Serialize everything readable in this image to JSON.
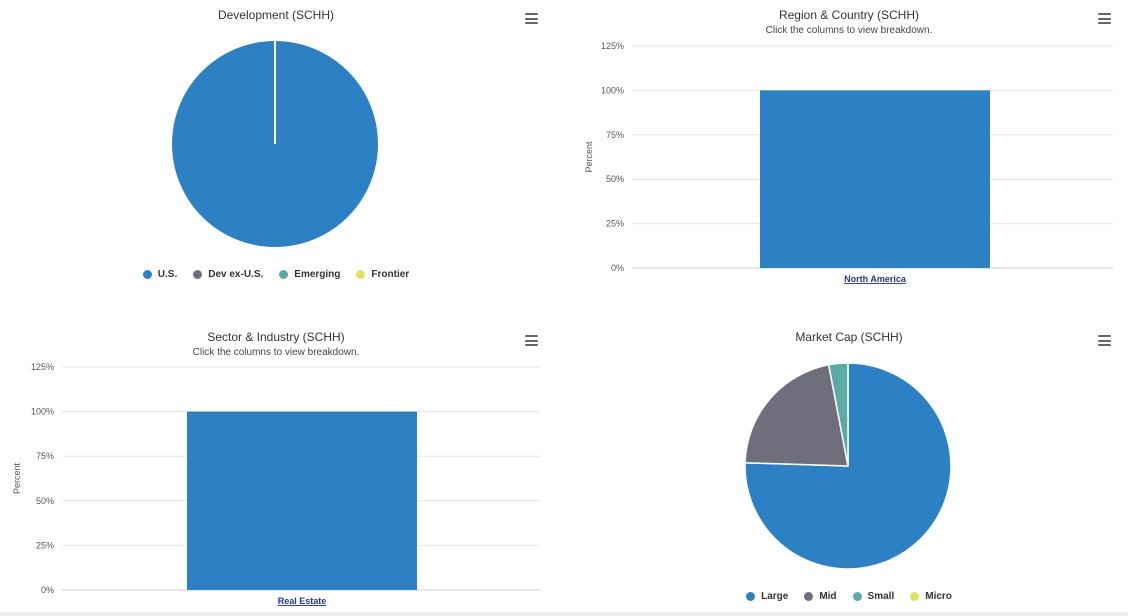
{
  "colors": {
    "blue": "#2b81c4",
    "gray": "#6e6e7c",
    "teal": "#5aaba6",
    "yellow": "#e2e35c"
  },
  "menu_icon": "hamburger-menu-icon",
  "chart_data": [
    {
      "id": "development",
      "type": "pie",
      "title": "Development (SCHH)",
      "labels": [
        "U.S.",
        "Dev ex-U.S.",
        "Emerging",
        "Frontier"
      ],
      "values": [
        100,
        0,
        0,
        0
      ],
      "colors": [
        "#2b81c4",
        "#6e6e7c",
        "#5aaba6",
        "#e2e35c"
      ],
      "legend": "bottom-center"
    },
    {
      "id": "region",
      "type": "bar",
      "title": "Region & Country (SCHH)",
      "subtitle": "Click the columns to view breakdown.",
      "categories": [
        "North America"
      ],
      "values": [
        100
      ],
      "ylabel": "Percent",
      "ylim": [
        0,
        125
      ],
      "yticks": [
        "0%",
        "25%",
        "50%",
        "75%",
        "100%",
        "125%"
      ],
      "grid": true
    },
    {
      "id": "sector",
      "type": "bar",
      "title": "Sector & Industry (SCHH)",
      "subtitle": "Click the columns to view breakdown.",
      "categories": [
        "Real Estate"
      ],
      "values": [
        100
      ],
      "ylabel": "Percent",
      "ylim": [
        0,
        125
      ],
      "yticks": [
        "0%",
        "25%",
        "50%",
        "75%",
        "100%",
        "125%"
      ],
      "grid": true
    },
    {
      "id": "marketcap",
      "type": "pie",
      "title": "Market Cap (SCHH)",
      "labels": [
        "Large",
        "Mid",
        "Small",
        "Micro"
      ],
      "values": [
        75.5,
        21.5,
        3.0,
        0
      ],
      "colors": [
        "#2b81c4",
        "#6e6e7c",
        "#5aaba6",
        "#e2e35c"
      ],
      "legend": "bottom-center"
    }
  ]
}
